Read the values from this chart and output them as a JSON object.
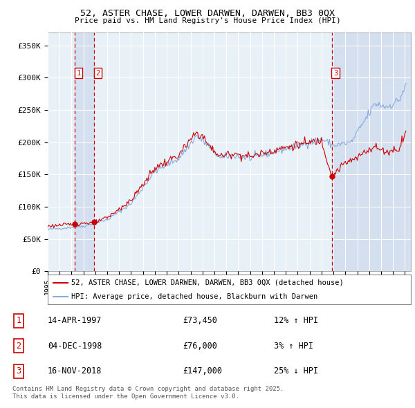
{
  "title": "52, ASTER CHASE, LOWER DARWEN, DARWEN, BB3 0QX",
  "subtitle": "Price paid vs. HM Land Registry's House Price Index (HPI)",
  "ylim": [
    0,
    370000
  ],
  "xlim": [
    1995.0,
    2025.5
  ],
  "background_color": "#ddeeff",
  "plot_bg_color": "#e8f0f8",
  "grid_color": "#ffffff",
  "red_color": "#cc0000",
  "blue_color": "#88aadd",
  "shade_color": "#ccd9ee",
  "legend_label_red": "52, ASTER CHASE, LOWER DARWEN, DARWEN, BB3 0QX (detached house)",
  "legend_label_blue": "HPI: Average price, detached house, Blackburn with Darwen",
  "transactions": [
    {
      "num": 1,
      "date": "14-APR-1997",
      "price": 73450,
      "pct": "12% ↑ HPI",
      "year": 1997.28
    },
    {
      "num": 2,
      "date": "04-DEC-1998",
      "price": 76000,
      "pct": "3% ↑ HPI",
      "year": 1998.92
    },
    {
      "num": 3,
      "date": "16-NOV-2018",
      "price": 147000,
      "pct": "25% ↓ HPI",
      "year": 2018.87
    }
  ],
  "footnote": "Contains HM Land Registry data © Crown copyright and database right 2025.\nThis data is licensed under the Open Government Licence v3.0.",
  "yticks": [
    0,
    50000,
    100000,
    150000,
    200000,
    250000,
    300000,
    350000
  ],
  "ytick_labels": [
    "£0",
    "£50K",
    "£100K",
    "£150K",
    "£200K",
    "£250K",
    "£300K",
    "£350K"
  ]
}
